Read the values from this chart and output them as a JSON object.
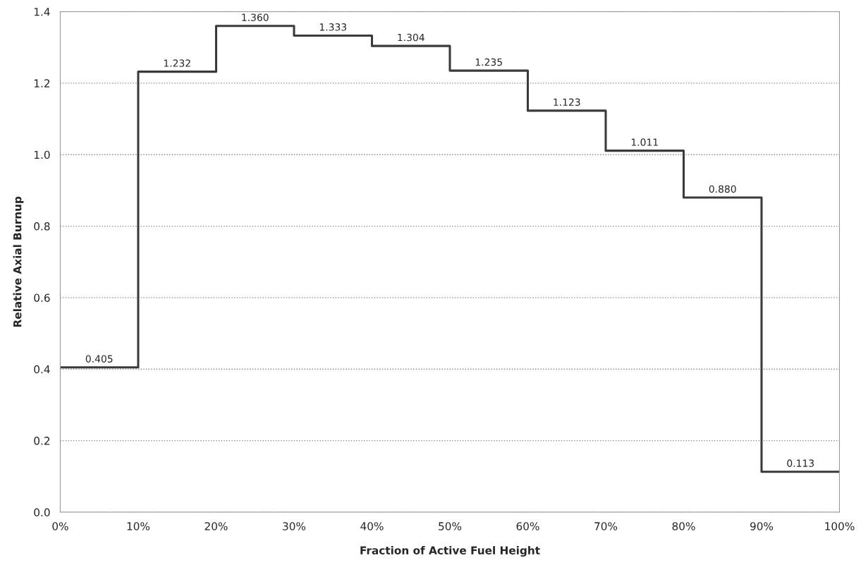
{
  "chart_data": {
    "type": "step",
    "xlabel": "Fraction of Active Fuel Height",
    "ylabel": "Relative Axial Burnup",
    "x": [
      0,
      5,
      15,
      25,
      35,
      45,
      55,
      65,
      75,
      85,
      95,
      100
    ],
    "values": [
      0.405,
      0.405,
      1.232,
      1.36,
      1.333,
      1.304,
      1.235,
      1.123,
      1.011,
      0.88,
      0.113,
      0.113
    ],
    "value_labels": [
      null,
      "0.405",
      "1.232",
      "1.360",
      "1.333",
      "1.304",
      "1.235",
      "1.123",
      "1.011",
      "0.880",
      "0.113",
      null
    ],
    "color": "#3a3a3a",
    "xlim": [
      0,
      100
    ],
    "xticks": [
      {
        "value": 0,
        "label": "0%"
      },
      {
        "value": 10,
        "label": "10%"
      },
      {
        "value": 20,
        "label": "20%"
      },
      {
        "value": 30,
        "label": "30%"
      },
      {
        "value": 40,
        "label": "40%"
      },
      {
        "value": 50,
        "label": "50%"
      },
      {
        "value": 60,
        "label": "60%"
      },
      {
        "value": 70,
        "label": "70%"
      },
      {
        "value": 80,
        "label": "80%"
      },
      {
        "value": 90,
        "label": "90%"
      },
      {
        "value": 100,
        "label": "100%"
      }
    ],
    "ylim": [
      0,
      1.4
    ],
    "yticks": [
      {
        "value": 0,
        "label": "0.0"
      },
      {
        "value": 0.2,
        "label": "0.2"
      },
      {
        "value": 0.4,
        "label": "0.4"
      },
      {
        "value": 0.6,
        "label": "0.6"
      },
      {
        "value": 0.8,
        "label": "0.8"
      },
      {
        "value": 1.0,
        "label": "1.0"
      },
      {
        "value": 1.2,
        "label": "1.2"
      },
      {
        "value": 1.4,
        "label": "1.4"
      }
    ],
    "grid": "y"
  }
}
